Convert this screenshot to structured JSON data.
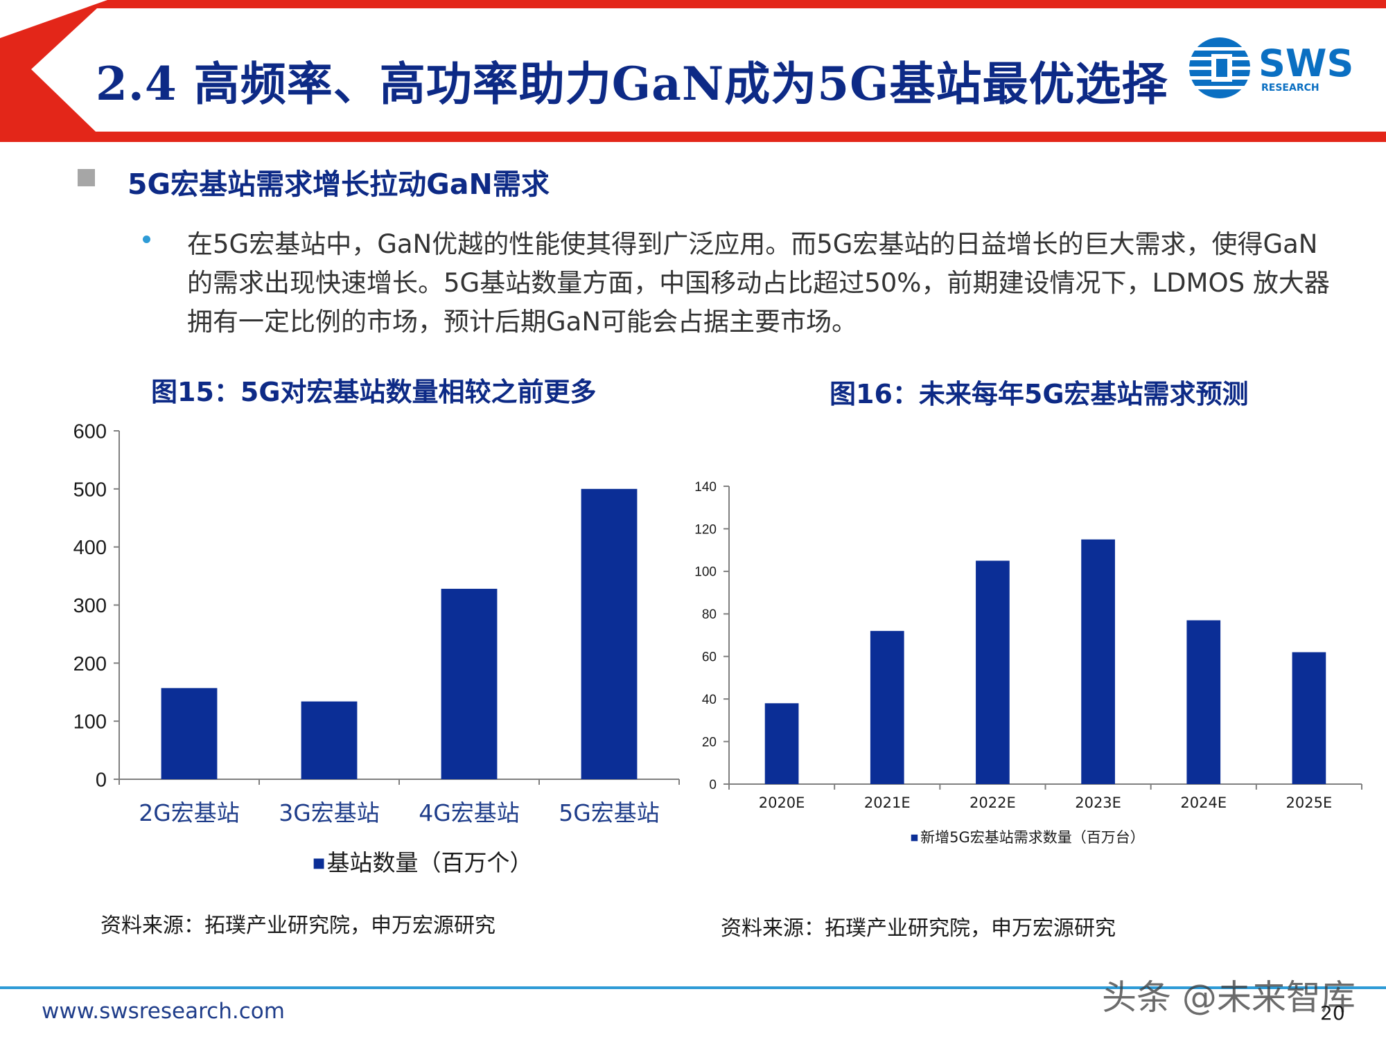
{
  "header": {
    "title": "2.4 高频率、高功率助力GaN成为5G基站最优选择",
    "logo_text": "SWS",
    "logo_subtext": "RESEARCH",
    "colors": {
      "red": "#e32619",
      "navy": "#0d2a86",
      "logo_blue": "#0a6fc2"
    }
  },
  "section": {
    "heading": "5G宏基站需求增长拉动GaN需求",
    "body": "在5G宏基站中，GaN优越的性能使其得到广泛应用。而5G宏基站的日益增长的巨大需求，使得GaN的需求出现快速增长。5G基站数量方面，中国移动占比超过50%，前期建设情况下，LDMOS 放大器拥有一定比例的市场，预计后期GaN可能会占据主要市场。"
  },
  "figures": {
    "fig15_title": "图15：5G对宏基站数量相较之前更多",
    "fig16_title": "图16：未来每年5G宏基站需求预测",
    "source_1": "资料来源：拓璞产业研究院，申万宏源研究",
    "source_2": "资料来源：拓璞产业研究院，申万宏源研究"
  },
  "chart_data": [
    {
      "type": "bar",
      "categories": [
        "2G宏基站",
        "3G宏基站",
        "4G宏基站",
        "5G宏基站"
      ],
      "series": [
        {
          "name": "基站数量（百万个）",
          "values": [
            157,
            134,
            328,
            500
          ]
        }
      ],
      "ylim": [
        0,
        600
      ],
      "yticks": [
        0,
        100,
        200,
        300,
        400,
        500,
        600
      ],
      "legend": "bottom",
      "grid": false,
      "color": "#0b2e96"
    },
    {
      "type": "bar",
      "categories": [
        "2020E",
        "2021E",
        "2022E",
        "2023E",
        "2024E",
        "2025E"
      ],
      "series": [
        {
          "name": "新增5G宏基站需求数量（百万台）",
          "values": [
            38,
            72,
            105,
            115,
            77,
            62
          ]
        }
      ],
      "ylim": [
        0,
        140
      ],
      "yticks": [
        0,
        20,
        40,
        60,
        80,
        100,
        120,
        140
      ],
      "legend": "bottom",
      "grid": false,
      "color": "#0b2e96"
    }
  ],
  "footer": {
    "url": "www.swsresearch.com",
    "page_number": "20",
    "watermark": "头条 @未来智库"
  }
}
